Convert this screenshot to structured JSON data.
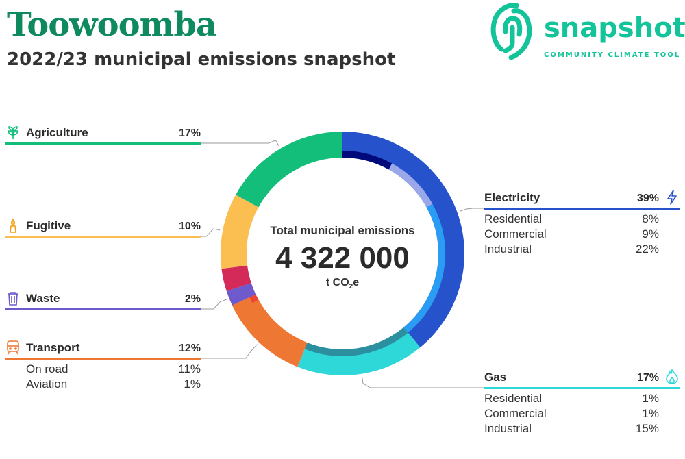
{
  "header": {
    "title": "Toowoomba",
    "subtitle": "2022/23 municipal emissions snapshot"
  },
  "logo": {
    "wordmark": "snapshot",
    "tagline": "COMMUNITY CLIMATE TOOL",
    "color": "#13c39a"
  },
  "center": {
    "label": "Total municipal emissions",
    "value": "4 322 000",
    "unit_prefix": "t CO",
    "unit_sub": "2",
    "unit_suffix": "e"
  },
  "chart_data": {
    "type": "pie",
    "total": 4322000,
    "unit": "t CO2e",
    "categories": [
      {
        "name": "Electricity",
        "pct": "39%",
        "value": 39,
        "color": "#2652cc",
        "icon": "lightning-icon",
        "subs": [
          {
            "name": "Residential",
            "pct": "8%",
            "value": 8,
            "color": "#000a7a"
          },
          {
            "name": "Commercial",
            "pct": "9%",
            "value": 9,
            "color": "#9aa8ea"
          },
          {
            "name": "Industrial",
            "pct": "22%",
            "value": 22,
            "color": "#2a9cf4"
          }
        ]
      },
      {
        "name": "Gas",
        "pct": "17%",
        "value": 17,
        "color": "#2ed8d8",
        "icon": "flame-icon",
        "subs": [
          {
            "name": "Residential",
            "pct": "1%",
            "value": 1,
            "color": "#2b8fa0"
          },
          {
            "name": "Commercial",
            "pct": "1%",
            "value": 1,
            "color": "#2b8fa0"
          },
          {
            "name": "Industrial",
            "pct": "15%",
            "value": 15,
            "color": "#2b8fa0"
          }
        ]
      },
      {
        "name": "Transport",
        "pct": "12%",
        "value": 12,
        "color": "#ee7733",
        "icon": "train-icon",
        "subs": [
          {
            "name": "On road",
            "pct": "11%",
            "value": 11,
            "color": "#ee7733"
          },
          {
            "name": "Aviation",
            "pct": "1%",
            "value": 1,
            "color": "#ee4433"
          }
        ]
      },
      {
        "name": "Waste",
        "pct": "2%",
        "value": 2,
        "color": "#6e5acd",
        "icon": "bin-icon",
        "subs": []
      },
      {
        "name": "Fugitive",
        "pct": "10%",
        "value": 10,
        "color": "#fbbe50",
        "icon": "flare-icon",
        "subs": []
      },
      {
        "name": "Agriculture",
        "pct": "17%",
        "value": 17,
        "color": "#13be7a",
        "icon": "plant-icon",
        "subs": []
      }
    ],
    "ring_extra": [
      {
        "after": "Waste",
        "value": 3,
        "color": "#d42a5a"
      }
    ]
  }
}
